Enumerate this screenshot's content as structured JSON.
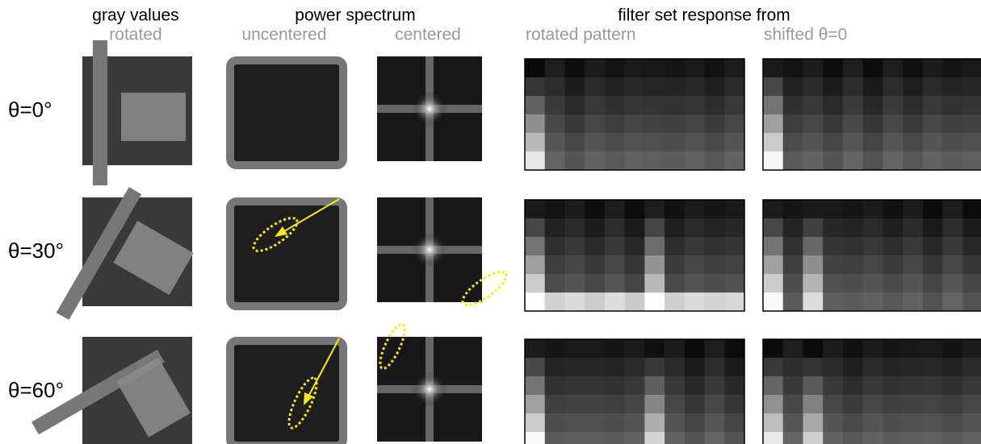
{
  "headers": {
    "gray_values": "gray values",
    "rotated": "rotated",
    "power_spectrum": "power spectrum",
    "uncentered": "uncentered",
    "centered": "centered",
    "filter_set": "filter set response from",
    "rotated_pattern": "rotated pattern",
    "shifted": "shifted θ=0"
  },
  "rows": [
    {
      "label": "θ=0°"
    },
    {
      "label": "θ=30°"
    },
    {
      "label": "θ=60°"
    }
  ]
}
